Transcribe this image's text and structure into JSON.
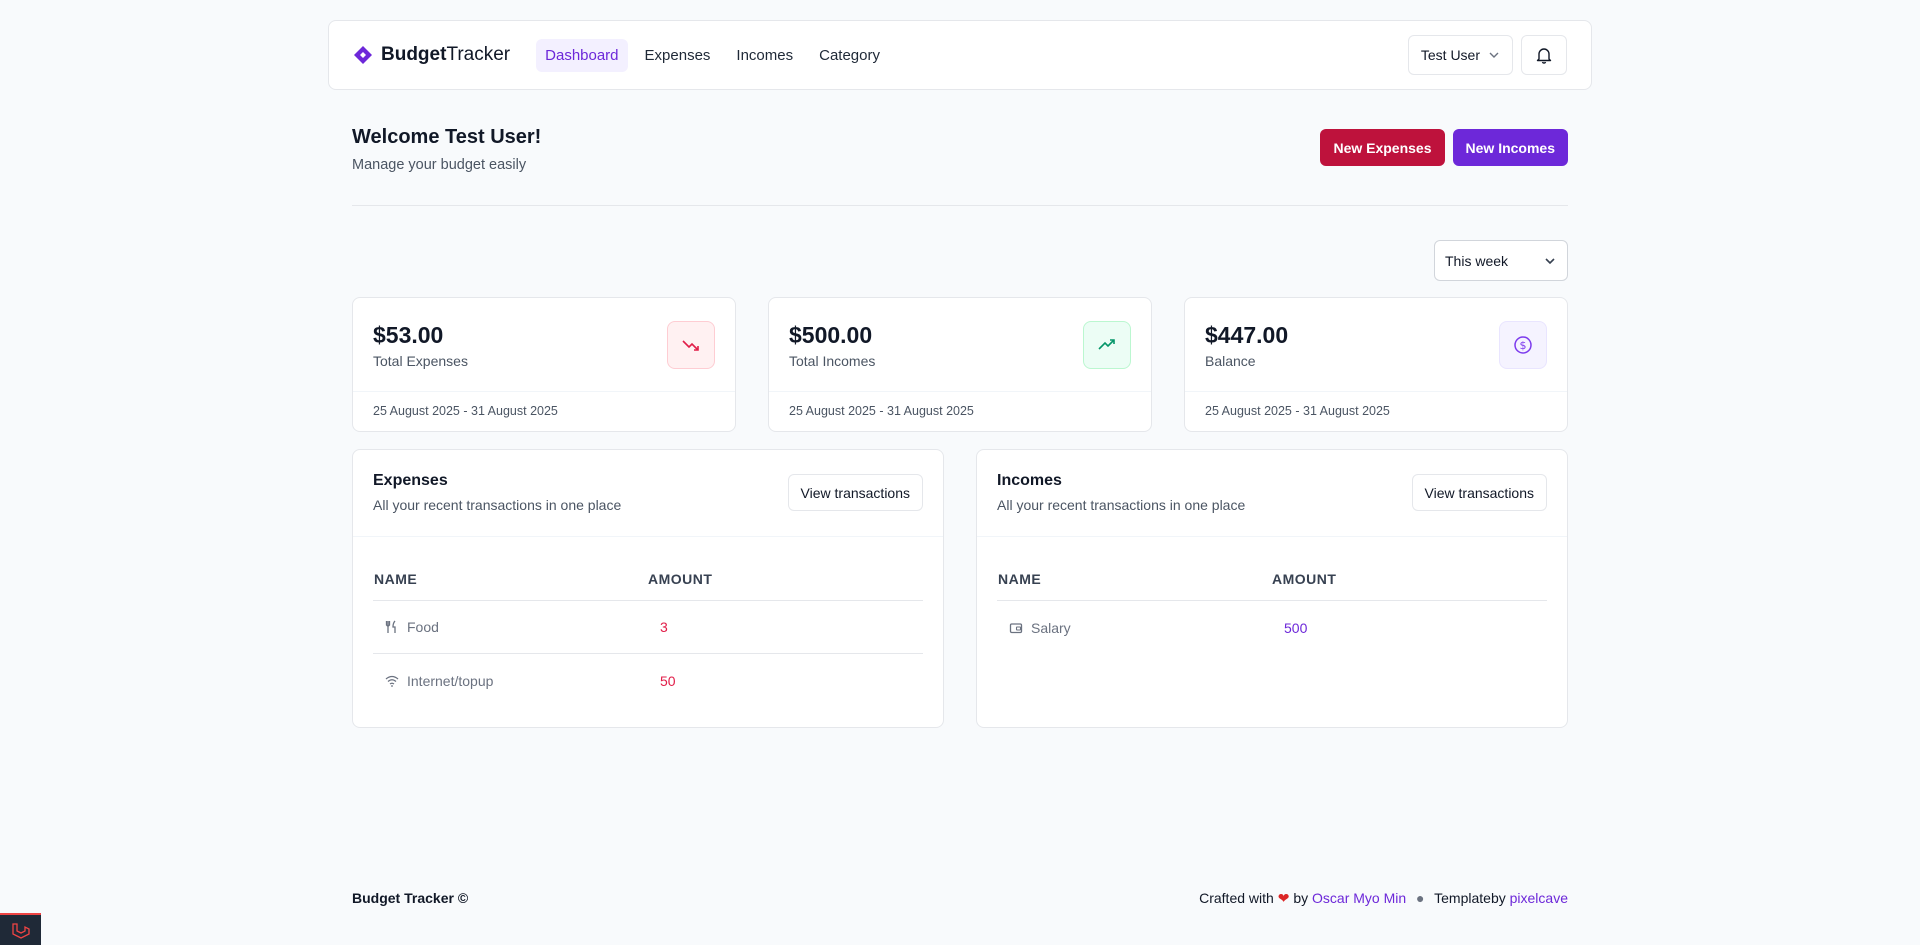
{
  "header": {
    "logo_bold": "Budget",
    "logo_light": "Tracker",
    "nav": [
      {
        "label": "Dashboard"
      },
      {
        "label": "Expenses"
      },
      {
        "label": "Incomes"
      },
      {
        "label": "Category"
      }
    ],
    "user_label": "Test User"
  },
  "welcome": {
    "title": "Welcome Test User!",
    "subtitle": "Manage your budget easily",
    "new_expenses": "New Expenses",
    "new_incomes": "New Incomes"
  },
  "period": {
    "selected": "This week"
  },
  "stats": [
    {
      "value": "$53.00",
      "label": "Total Expenses",
      "range": "25 August 2025 - 31 August 2025",
      "icon": "trending-down-icon"
    },
    {
      "value": "$500.00",
      "label": "Total Incomes",
      "range": "25 August 2025 - 31 August 2025",
      "icon": "trending-up-icon"
    },
    {
      "value": "$447.00",
      "label": "Balance",
      "range": "25 August 2025 - 31 August 2025",
      "icon": "dollar-circle-icon"
    }
  ],
  "expenses": {
    "title": "Expenses",
    "subtitle": "All your recent transactions in one place",
    "view_label": "View transactions",
    "col_name": "NAME",
    "col_amount": "AMOUNT",
    "rows": [
      {
        "name": "Food",
        "amount": "3",
        "icon": "utensils-icon"
      },
      {
        "name": "Internet/topup",
        "amount": "50",
        "icon": "wifi-icon"
      }
    ]
  },
  "incomes": {
    "title": "Incomes",
    "subtitle": "All your recent transactions in one place",
    "view_label": "View transactions",
    "col_name": "NAME",
    "col_amount": "AMOUNT",
    "rows": [
      {
        "name": "Salary",
        "amount": "500",
        "icon": "wallet-icon"
      }
    ]
  },
  "footer": {
    "brand": "Budget Tracker ©",
    "crafted": "Crafted with",
    "by": "by",
    "author": "Oscar Myo Min",
    "template": "Templateby",
    "template_link": "pixelcave"
  },
  "colors": {
    "accent": "#6d28d9",
    "danger": "#be123c"
  }
}
